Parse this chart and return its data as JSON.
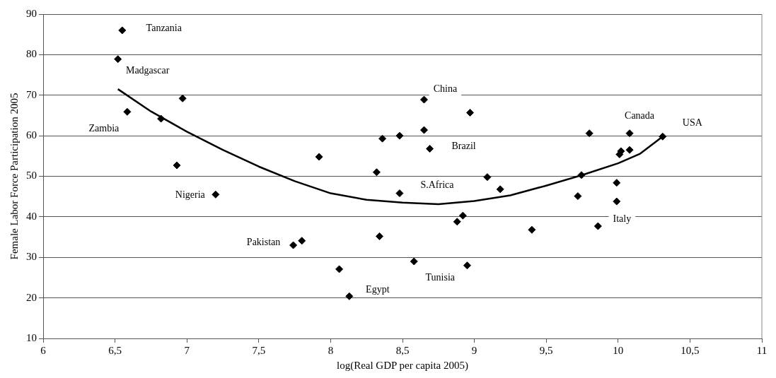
{
  "chart_data": {
    "type": "scatter",
    "xlabel": "log(Real GDP per capita 2005)",
    "ylabel": "Female Labor Force Participation 2005",
    "xlim": [
      6,
      11
    ],
    "xticks": [
      6,
      {
        "value": 6.5,
        "label": "6,5"
      },
      7,
      {
        "value": 7.5,
        "label": "7,5"
      },
      8,
      {
        "value": 8.5,
        "label": "8,5"
      },
      9,
      {
        "value": 9.5,
        "label": "9,5"
      },
      10,
      {
        "value": 10.5,
        "label": "10,5"
      },
      11
    ],
    "ylim": [
      10,
      90
    ],
    "yticks": [
      10,
      20,
      30,
      40,
      50,
      60,
      70,
      80,
      90
    ],
    "grid": "y",
    "legend": false,
    "series": [
      {
        "type": "scatter",
        "color": "#000000",
        "marker": "diamond",
        "x": [
          6.55,
          6.52,
          6.585,
          6.82,
          6.97,
          6.93,
          7.92,
          8.36,
          8.48,
          8.32,
          8.65,
          8.97,
          8.65,
          8.69,
          9.8,
          10.08,
          10.31,
          10.02,
          10.01,
          10.08,
          9.745,
          9.09,
          9.99,
          7.2,
          8.48,
          7.74,
          7.8,
          8.34,
          8.06,
          8.13,
          9.18,
          9.72,
          9.99,
          9.86,
          9.4,
          8.88,
          8.92,
          8.58,
          8.95
        ],
        "values": [
          86,
          78.9,
          65.9,
          64.2,
          69.2,
          52.7,
          54.8,
          59.3,
          60,
          51,
          68.9,
          65.7,
          61.4,
          56.8,
          60.6,
          60.6,
          59.8,
          56.2,
          55.4,
          56.5,
          50.3,
          49.8,
          48.4,
          45.5,
          45.8,
          33,
          34.1,
          35.2,
          27.1,
          20.4,
          46.8,
          45.1,
          43.8,
          37.7,
          36.8,
          38.8,
          40.3,
          29,
          28
        ]
      },
      {
        "type": "line",
        "color": "#000000",
        "marker": "none",
        "line_style": "solid",
        "x": [
          6.52,
          6.75,
          7,
          7.25,
          7.5,
          7.75,
          8,
          8.25,
          8.5,
          8.75,
          9,
          9.25,
          9.5,
          9.75,
          10,
          10.15,
          10.31
        ],
        "values": [
          71.5,
          66,
          61,
          56.5,
          52.4,
          48.8,
          45.8,
          44.2,
          43.5,
          43.1,
          43.9,
          45.3,
          47.7,
          50.3,
          53.2,
          55.5,
          59.8
        ]
      }
    ],
    "annotations": [
      {
        "text": "Tanzania",
        "x": 6.55,
        "y": 86
      },
      {
        "text": "Madgascar",
        "x": 6.52,
        "y": 78.9
      },
      {
        "text": "Zambia",
        "x": 6.585,
        "y": 65.9
      },
      {
        "text": "Nigeria",
        "x": 7.2,
        "y": 45.5
      },
      {
        "text": "Pakistan",
        "x": 7.74,
        "y": 33
      },
      {
        "text": "Egypt",
        "x": 8.13,
        "y": 20.4
      },
      {
        "text": "China",
        "x": 8.65,
        "y": 68.9
      },
      {
        "text": "Brazil",
        "x": 8.69,
        "y": 56.8
      },
      {
        "text": "S.Africa",
        "x": 8.48,
        "y": 45.8
      },
      {
        "text": "Tunisia",
        "x": 8.58,
        "y": 29
      },
      {
        "text": "Italy",
        "x": 9.86,
        "y": 37.7
      },
      {
        "text": "Canada",
        "x": 10.08,
        "y": 60.6
      },
      {
        "text": "USA",
        "x": 10.31,
        "y": 59.8
      }
    ]
  }
}
